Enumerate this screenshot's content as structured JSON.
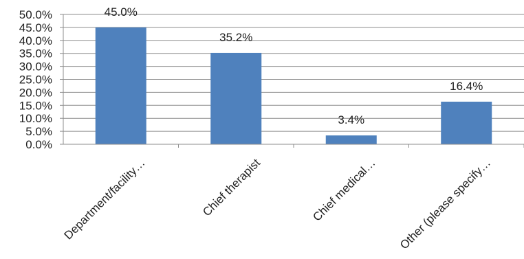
{
  "chart_data": {
    "type": "bar",
    "categories": [
      "Department/facility…",
      "Chief therapist",
      "Chief medical…",
      "Other (please specify…"
    ],
    "values": [
      45.0,
      35.2,
      3.4,
      16.4
    ],
    "data_labels": [
      "45.0%",
      "35.2%",
      "3.4%",
      "16.4%"
    ],
    "y_ticks": [
      "0.0%",
      "5.0%",
      "10.0%",
      "15.0%",
      "20.0%",
      "25.0%",
      "30.0%",
      "35.0%",
      "40.0%",
      "45.0%",
      "50.0%"
    ],
    "ylim": [
      0,
      50
    ],
    "grid": true,
    "bar_color": "#4F81BD",
    "grid_color": "#8C8C8C"
  }
}
